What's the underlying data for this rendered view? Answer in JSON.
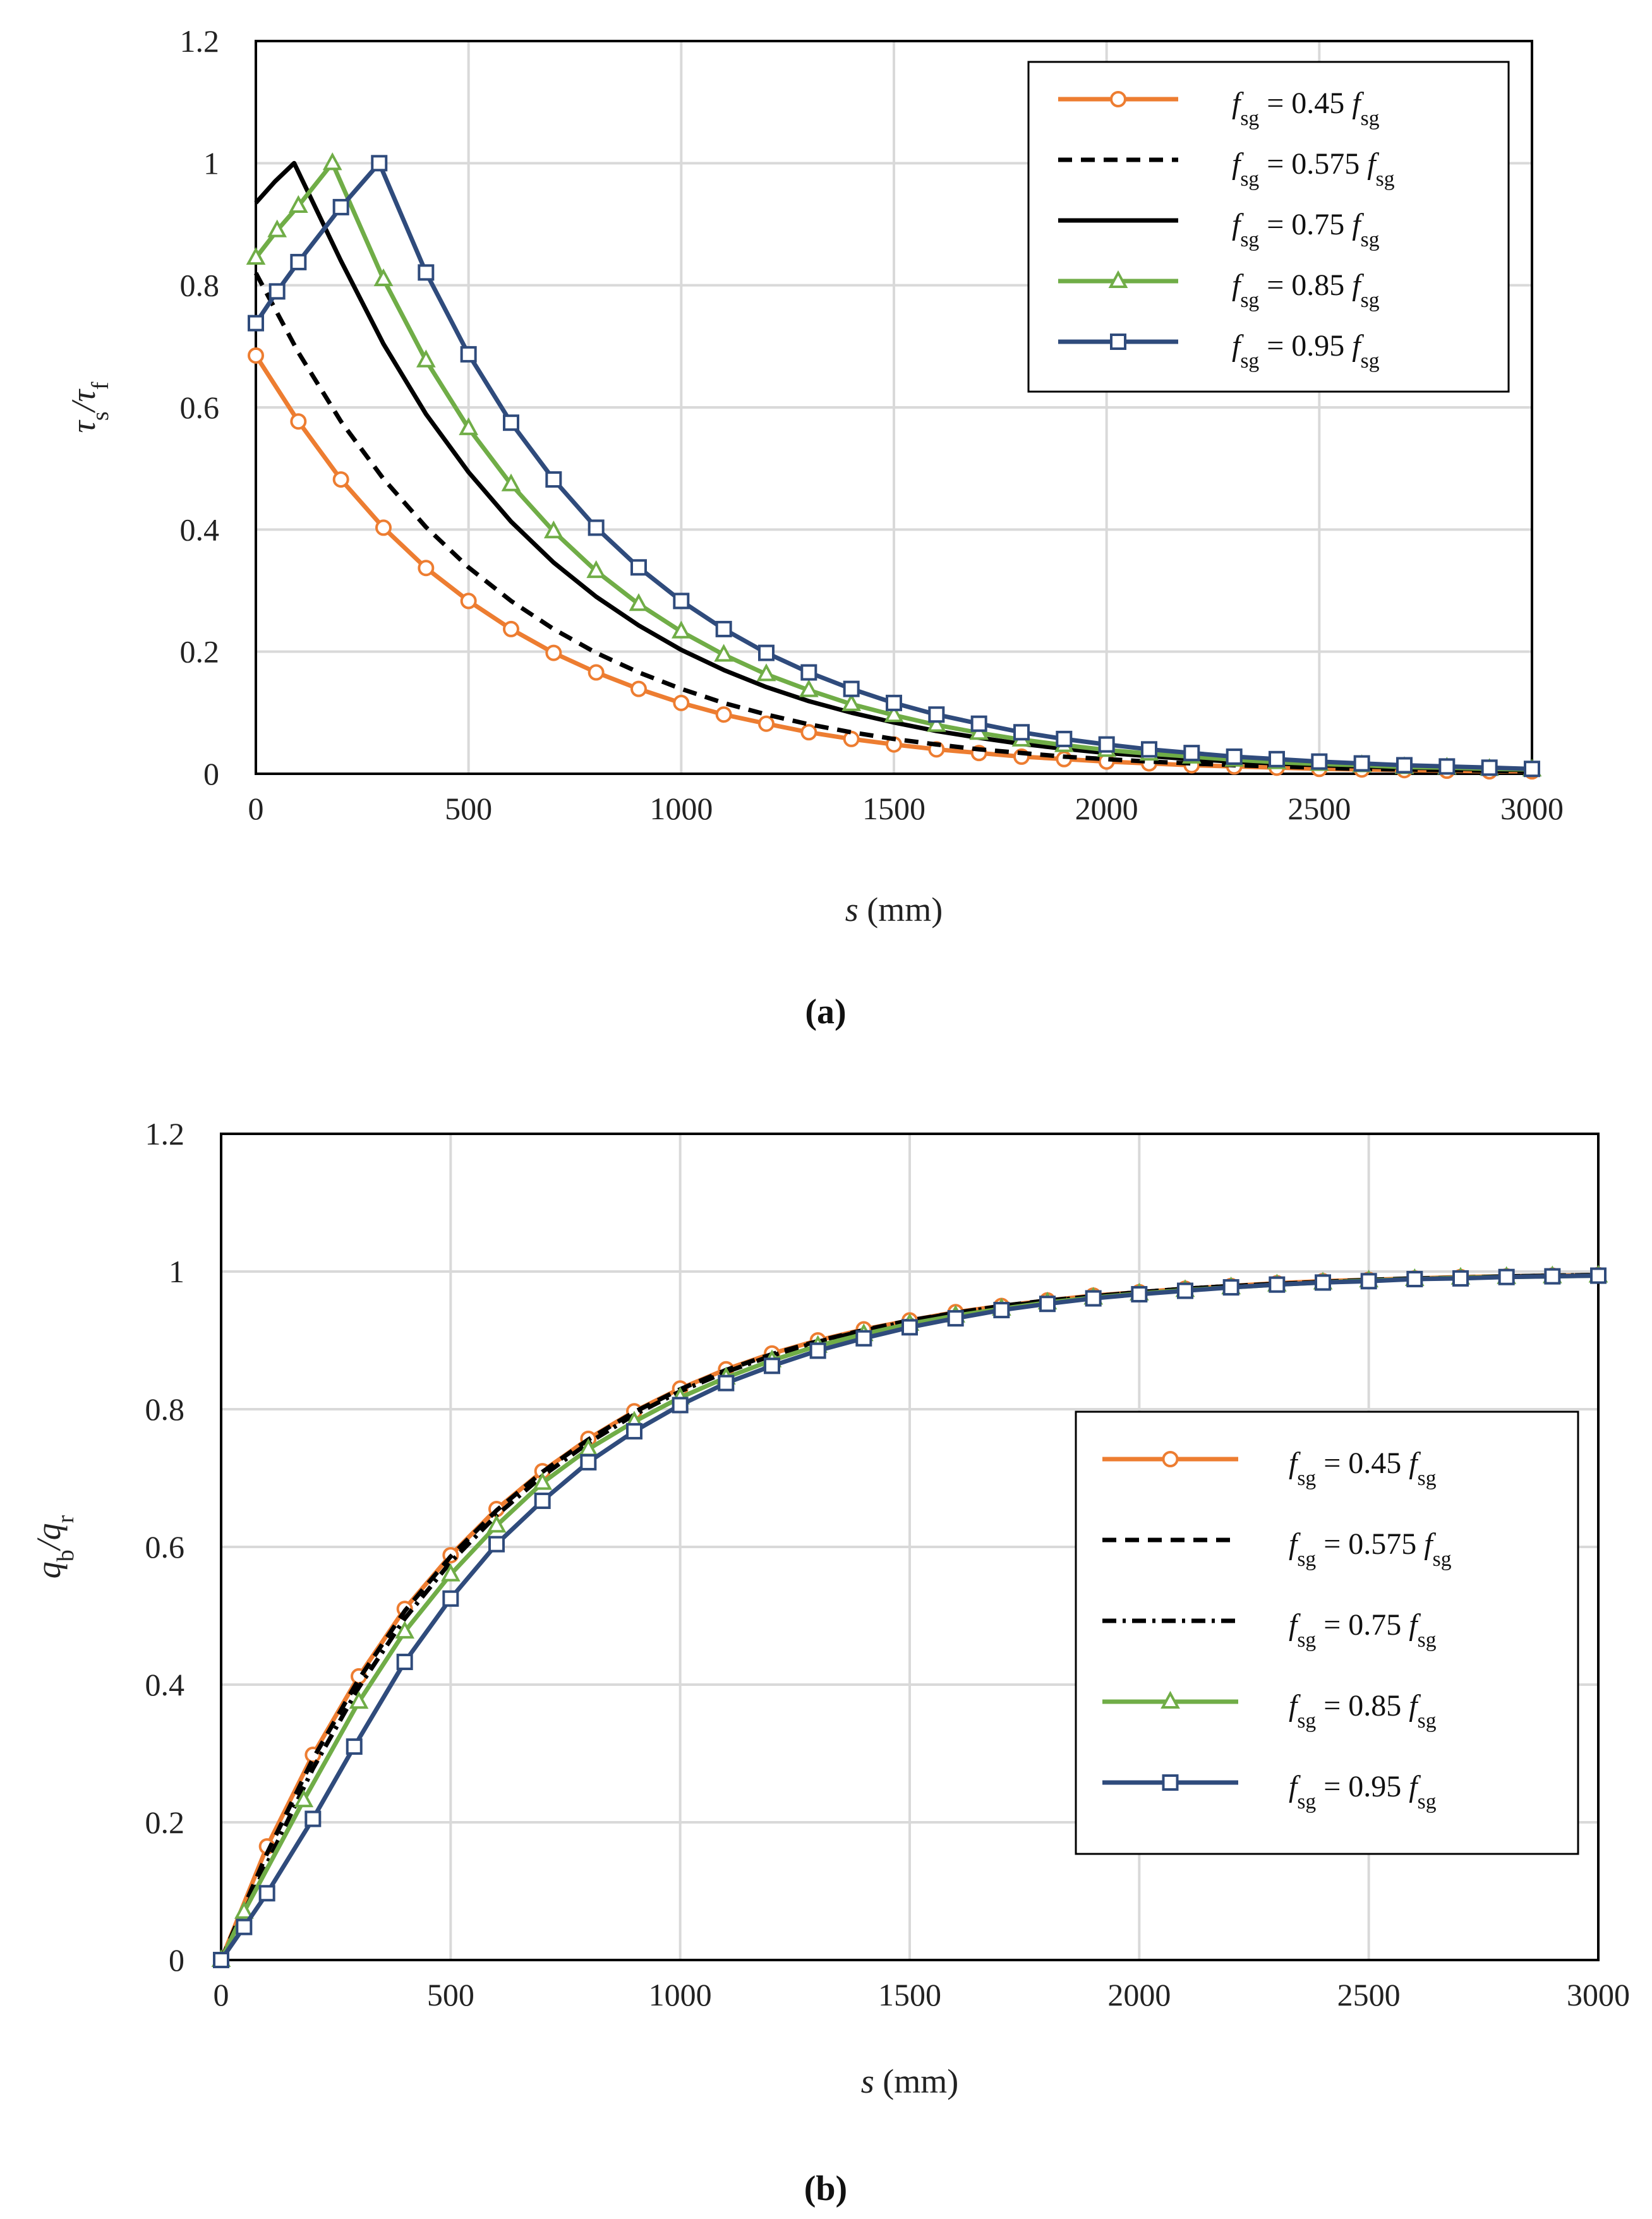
{
  "chart_data": [
    {
      "type": "line",
      "panel_label": "(a)",
      "ylabel": {
        "main": "τ",
        "sub1": "s",
        "sep": "/τ",
        "sub2": "f"
      },
      "xlabel": {
        "var": "s",
        "unit": " (mm)"
      },
      "xlim": [
        0,
        3000
      ],
      "ylim": [
        0,
        1.2
      ],
      "xticks": [
        "0",
        "500",
        "1000",
        "1500",
        "2000",
        "2500",
        "3000"
      ],
      "yticks": [
        "0",
        "0.2",
        "0.4",
        "0.6",
        "0.8",
        "1",
        "1.2"
      ],
      "legend_position": "top-right",
      "series": [
        {
          "key": "a1",
          "name": {
            "f": "f",
            "sub": "sg",
            "eq": " = 0.45 ",
            "f2": "f",
            "sub2": "sg"
          },
          "color": "#ED7D31",
          "dash": "",
          "marker": "circle",
          "x": [
            0,
            100,
            200,
            300,
            400,
            500,
            600,
            700,
            800,
            900,
            1000,
            1100,
            1200,
            1300,
            1400,
            1500,
            1600,
            1700,
            1800,
            1900,
            2000,
            2100,
            2200,
            2300,
            2400,
            2500,
            2600,
            2700,
            2800,
            2900,
            3000
          ],
          "y": [
            0.685,
            0.577,
            0.482,
            0.403,
            0.337,
            0.283,
            0.237,
            0.198,
            0.166,
            0.139,
            0.116,
            0.097,
            0.082,
            0.068,
            0.057,
            0.048,
            0.04,
            0.034,
            0.028,
            0.024,
            0.02,
            0.017,
            0.014,
            0.012,
            0.01,
            0.008,
            0.007,
            0.006,
            0.005,
            0.004,
            0.004
          ]
        },
        {
          "key": "a2",
          "name": {
            "f": "f",
            "sub": "sg",
            "eq": " = 0.575 ",
            "f2": "f",
            "sub2": "sg"
          },
          "color": "#000000",
          "dash": "22 14",
          "marker": "none",
          "x": [
            0,
            100,
            200,
            300,
            400,
            500,
            600,
            700,
            800,
            900,
            1000,
            1100,
            1200,
            1300,
            1400,
            1500,
            1600,
            1700,
            1800,
            1900,
            2000,
            2100,
            2200,
            2300,
            2400,
            2500,
            2600,
            2700,
            2800,
            2900,
            3000
          ],
          "y": [
            0.82,
            0.69,
            0.577,
            0.483,
            0.404,
            0.338,
            0.283,
            0.237,
            0.198,
            0.166,
            0.139,
            0.116,
            0.097,
            0.081,
            0.068,
            0.057,
            0.048,
            0.04,
            0.034,
            0.028,
            0.024,
            0.02,
            0.017,
            0.014,
            0.012,
            0.01,
            0.008,
            0.007,
            0.006,
            0.005,
            0.004
          ]
        },
        {
          "key": "a3",
          "name": {
            "f": "f",
            "sub": "sg",
            "eq": " = 0.75 ",
            "f2": "f",
            "sub2": "sg"
          },
          "color": "#000000",
          "dash": "",
          "marker": "none",
          "x": [
            0,
            45,
            90,
            200,
            300,
            400,
            500,
            600,
            700,
            800,
            900,
            1000,
            1100,
            1200,
            1300,
            1400,
            1500,
            1600,
            1700,
            1800,
            1900,
            2000,
            2100,
            2200,
            2300,
            2400,
            2500,
            2600,
            2700,
            2800,
            2900,
            3000
          ],
          "y": [
            0.935,
            0.97,
            1.0,
            0.84,
            0.704,
            0.589,
            0.494,
            0.413,
            0.346,
            0.29,
            0.243,
            0.203,
            0.17,
            0.142,
            0.119,
            0.1,
            0.084,
            0.07,
            0.059,
            0.049,
            0.041,
            0.034,
            0.029,
            0.024,
            0.02,
            0.017,
            0.014,
            0.012,
            0.01,
            0.009,
            0.007,
            0.006
          ]
        },
        {
          "key": "a4",
          "name": {
            "f": "f",
            "sub": "sg",
            "eq": " = 0.85 ",
            "f2": "f",
            "sub2": "sg"
          },
          "color": "#70AD47",
          "dash": "",
          "marker": "triangle",
          "x": [
            0,
            50,
            100,
            180,
            300,
            400,
            500,
            600,
            700,
            800,
            900,
            1000,
            1100,
            1200,
            1300,
            1400,
            1500,
            1600,
            1700,
            1800,
            1900,
            2000,
            2100,
            2200,
            2300,
            2400,
            2500,
            2600,
            2700,
            2800,
            2900,
            3000
          ],
          "y": [
            0.845,
            0.89,
            0.93,
            1.0,
            0.81,
            0.677,
            0.566,
            0.474,
            0.397,
            0.332,
            0.278,
            0.233,
            0.195,
            0.163,
            0.137,
            0.114,
            0.096,
            0.08,
            0.067,
            0.056,
            0.047,
            0.039,
            0.033,
            0.028,
            0.023,
            0.019,
            0.016,
            0.014,
            0.011,
            0.01,
            0.008,
            0.007
          ]
        },
        {
          "key": "a5",
          "name": {
            "f": "f",
            "sub": "sg",
            "eq": " = 0.95 ",
            "f2": "f",
            "sub2": "sg"
          },
          "color": "#2F4B7C",
          "dash": "",
          "marker": "square",
          "x": [
            0,
            50,
            100,
            200,
            290,
            400,
            500,
            600,
            700,
            800,
            900,
            1000,
            1100,
            1200,
            1300,
            1400,
            1500,
            1600,
            1700,
            1800,
            1900,
            2000,
            2100,
            2200,
            2300,
            2400,
            2500,
            2600,
            2700,
            2800,
            2900,
            3000
          ],
          "y": [
            0.738,
            0.79,
            0.838,
            0.928,
            1.0,
            0.821,
            0.687,
            0.575,
            0.482,
            0.403,
            0.338,
            0.283,
            0.237,
            0.198,
            0.166,
            0.139,
            0.116,
            0.097,
            0.082,
            0.068,
            0.057,
            0.048,
            0.04,
            0.034,
            0.028,
            0.024,
            0.02,
            0.017,
            0.014,
            0.012,
            0.01,
            0.008
          ]
        }
      ]
    },
    {
      "type": "line",
      "panel_label": "(b)",
      "ylabel": {
        "main": "q",
        "sub1": "b",
        "sep": "/q",
        "sub2": "r"
      },
      "xlabel": {
        "var": "s",
        "unit": " (mm)"
      },
      "xlim": [
        0,
        3000
      ],
      "ylim": [
        0,
        1.2
      ],
      "xticks": [
        "0",
        "500",
        "1000",
        "1500",
        "2000",
        "2500",
        "3000"
      ],
      "yticks": [
        "0",
        "0.2",
        "0.4",
        "0.6",
        "0.8",
        "1",
        "1.2"
      ],
      "legend_position": "center-right",
      "series": [
        {
          "key": "b1",
          "name": {
            "f": "f",
            "sub": "sg",
            "eq": " = 0.45 ",
            "f2": "f",
            "sub2": "sg"
          },
          "color": "#ED7D31",
          "dash": "",
          "marker": "circle",
          "x": [
            0,
            100,
            200,
            300,
            400,
            500,
            600,
            700,
            800,
            900,
            1000,
            1100,
            1200,
            1300,
            1400,
            1500,
            1600,
            1700,
            1800,
            1900,
            2000,
            2100,
            2200,
            2300,
            2400,
            2500,
            2600,
            2700,
            2800,
            2900,
            3000
          ],
          "y": [
            0,
            0.165,
            0.298,
            0.412,
            0.51,
            0.588,
            0.655,
            0.71,
            0.757,
            0.797,
            0.83,
            0.858,
            0.881,
            0.9,
            0.916,
            0.929,
            0.941,
            0.95,
            0.958,
            0.965,
            0.97,
            0.975,
            0.979,
            0.983,
            0.986,
            0.988,
            0.99,
            0.992,
            0.993,
            0.994,
            0.995
          ]
        },
        {
          "key": "b2",
          "name": {
            "f": "f",
            "sub": "sg",
            "eq": " = 0.575 ",
            "f2": "f",
            "sub2": "sg"
          },
          "color": "#000000",
          "dash": "22 14",
          "marker": "none",
          "x": [
            0,
            100,
            200,
            300,
            400,
            500,
            600,
            700,
            800,
            900,
            1000,
            1100,
            1200,
            1300,
            1400,
            1500,
            1600,
            1700,
            1800,
            1900,
            2000,
            2100,
            2200,
            2300,
            2400,
            2500,
            2600,
            2700,
            2800,
            2900,
            3000
          ],
          "y": [
            0,
            0.155,
            0.292,
            0.408,
            0.507,
            0.586,
            0.653,
            0.709,
            0.756,
            0.796,
            0.829,
            0.857,
            0.88,
            0.899,
            0.915,
            0.929,
            0.94,
            0.95,
            0.958,
            0.964,
            0.97,
            0.975,
            0.979,
            0.982,
            0.985,
            0.988,
            0.99,
            0.991,
            0.993,
            0.994,
            0.995
          ]
        },
        {
          "key": "b3",
          "name": {
            "f": "f",
            "sub": "sg",
            "eq": " = 0.75 ",
            "f2": "f",
            "sub2": "sg"
          },
          "color": "#000000",
          "dash": "22 10 5 10",
          "marker": "none",
          "x": [
            0,
            100,
            200,
            300,
            400,
            500,
            600,
            700,
            800,
            900,
            1000,
            1100,
            1200,
            1300,
            1400,
            1500,
            1600,
            1700,
            1800,
            1900,
            2000,
            2100,
            2200,
            2300,
            2400,
            2500,
            2600,
            2700,
            2800,
            2900,
            3000
          ],
          "y": [
            0,
            0.14,
            0.278,
            0.396,
            0.496,
            0.578,
            0.646,
            0.703,
            0.751,
            0.792,
            0.826,
            0.854,
            0.878,
            0.898,
            0.914,
            0.928,
            0.94,
            0.949,
            0.957,
            0.964,
            0.97,
            0.975,
            0.979,
            0.982,
            0.985,
            0.987,
            0.989,
            0.991,
            0.993,
            0.994,
            0.995
          ]
        },
        {
          "key": "b4",
          "name": {
            "f": "f",
            "sub": "sg",
            "eq": " = 0.85 ",
            "f2": "f",
            "sub2": "sg"
          },
          "color": "#70AD47",
          "dash": "",
          "marker": "triangle",
          "x": [
            0,
            50,
            180,
            300,
            400,
            500,
            600,
            700,
            800,
            900,
            1000,
            1100,
            1200,
            1300,
            1400,
            1500,
            1600,
            1700,
            1800,
            1900,
            2000,
            2100,
            2200,
            2300,
            2400,
            2500,
            2600,
            2700,
            2800,
            2900,
            3000
          ],
          "y": [
            0,
            0.07,
            0.232,
            0.375,
            0.477,
            0.56,
            0.631,
            0.693,
            0.742,
            0.782,
            0.817,
            0.846,
            0.871,
            0.892,
            0.909,
            0.924,
            0.936,
            0.946,
            0.955,
            0.962,
            0.968,
            0.973,
            0.977,
            0.981,
            0.984,
            0.987,
            0.989,
            0.991,
            0.992,
            0.993,
            0.994
          ]
        },
        {
          "key": "b5",
          "name": {
            "f": "f",
            "sub": "sg",
            "eq": " = 0.95 ",
            "f2": "f",
            "sub2": "sg"
          },
          "color": "#2F4B7C",
          "dash": "",
          "marker": "square",
          "x": [
            0,
            50,
            100,
            200,
            290,
            400,
            500,
            600,
            700,
            800,
            900,
            1000,
            1100,
            1200,
            1300,
            1400,
            1500,
            1600,
            1700,
            1800,
            1900,
            2000,
            2100,
            2200,
            2300,
            2400,
            2500,
            2600,
            2700,
            2800,
            2900,
            3000
          ],
          "y": [
            0,
            0.048,
            0.097,
            0.205,
            0.31,
            0.433,
            0.525,
            0.604,
            0.667,
            0.723,
            0.768,
            0.806,
            0.838,
            0.863,
            0.885,
            0.903,
            0.919,
            0.932,
            0.944,
            0.953,
            0.961,
            0.967,
            0.972,
            0.977,
            0.981,
            0.984,
            0.986,
            0.989,
            0.99,
            0.992,
            0.993,
            0.994
          ]
        }
      ]
    }
  ]
}
